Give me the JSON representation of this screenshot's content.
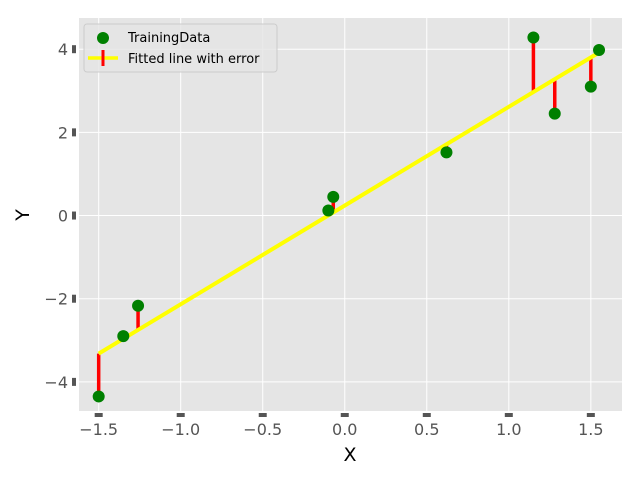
{
  "chart_data": {
    "type": "scatter",
    "title": "",
    "xlabel": "X",
    "ylabel": "Y",
    "xlim": [
      -1.62,
      1.69
    ],
    "ylim": [
      -4.7,
      4.75
    ],
    "xticks": [
      -1.5,
      -1.0,
      -0.5,
      0.0,
      0.5,
      1.0,
      1.5
    ],
    "xtick_labels": [
      "−1.5",
      "−1.0",
      "−0.5",
      "0.0",
      "0.5",
      "1.0",
      "1.5"
    ],
    "yticks": [
      -4,
      -2,
      0,
      2,
      4
    ],
    "ytick_labels": [
      "−4",
      "−2",
      "0",
      "2",
      "4"
    ],
    "grid": true,
    "legend_position": "top-left",
    "series": [
      {
        "name": "TrainingData",
        "kind": "scatter",
        "color": "#008000",
        "x": [
          -1.5,
          -1.35,
          -1.26,
          -0.1,
          -0.07,
          0.62,
          1.15,
          1.28,
          1.5,
          1.55
        ],
        "y": [
          -4.35,
          -2.9,
          -2.17,
          0.12,
          0.45,
          1.52,
          4.28,
          2.45,
          3.1,
          3.98
        ]
      },
      {
        "name": "Fitted line with error",
        "kind": "line",
        "color": "#ffff00",
        "error_color": "#ff0000",
        "x": [
          -1.5,
          1.55
        ],
        "y": [
          -3.32,
          3.92
        ]
      }
    ]
  }
}
